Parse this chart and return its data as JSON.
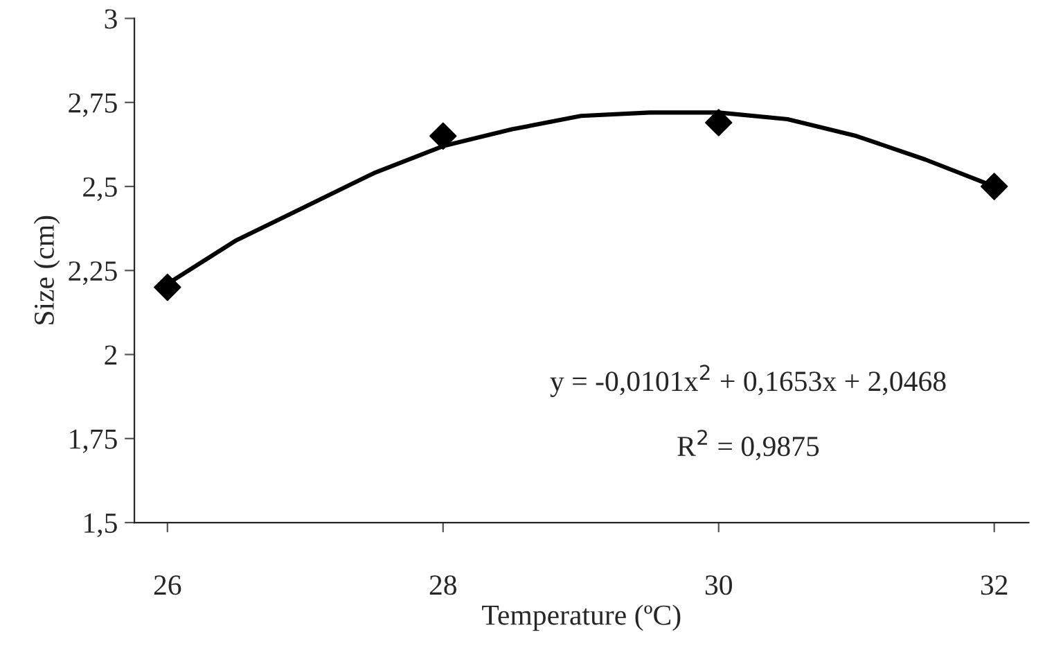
{
  "chart_data": {
    "type": "scatter",
    "xlabel": "Temperature (ºC)",
    "ylabel": "Size (cm)",
    "xlim": [
      25.76,
      32.25
    ],
    "xticks": [
      26,
      28,
      30,
      32
    ],
    "ylim": [
      1.5,
      3
    ],
    "yticks": [
      {
        "value": 1.5,
        "label": "1,5"
      },
      {
        "value": 1.75,
        "label": "1,75"
      },
      {
        "value": 2,
        "label": "2"
      },
      {
        "value": 2.25,
        "label": "2,25"
      },
      {
        "value": 2.5,
        "label": "2,5"
      },
      {
        "value": 2.75,
        "label": "2,75"
      },
      {
        "value": 3,
        "label": "3"
      }
    ],
    "series": [
      {
        "type": "line",
        "color": "#000000",
        "marker": "none",
        "x": [
          26,
          26.5,
          27,
          27.5,
          28,
          28.5,
          29,
          29.5,
          30,
          30.5,
          31,
          31.5,
          32
        ],
        "values": [
          2.21,
          2.34,
          2.44,
          2.54,
          2.62,
          2.67,
          2.71,
          2.72,
          2.72,
          2.7,
          2.65,
          2.58,
          2.5
        ]
      },
      {
        "color": "#000000",
        "marker": "diamond",
        "x": [
          26,
          28,
          30,
          32
        ],
        "values": [
          2.2,
          2.65,
          2.69,
          2.5
        ]
      }
    ],
    "annotations": [
      "y = -0,0101x$^{2}$ + 0,1653x + 2,0468",
      "R$^{2}$ = 0,9875"
    ]
  }
}
